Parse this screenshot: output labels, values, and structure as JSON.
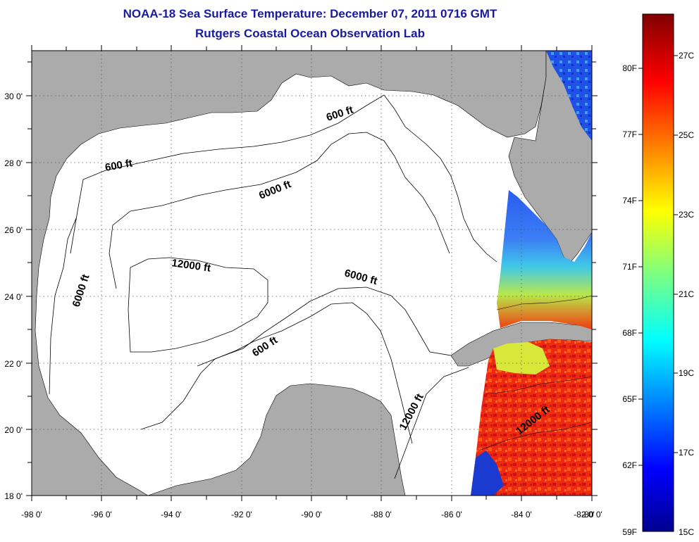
{
  "title": "NOAA-18 Sea Surface Temperature:  December 07, 2011 0716 GMT",
  "subtitle": "Rutgers Coastal Ocean Observation Lab",
  "lon_ticks": [
    "-98 0'",
    "-96 0'",
    "-94 0'",
    "-92 0'",
    "-90 0'",
    "-88 0'",
    "-86 0'",
    "-84 0'",
    "-82 0'",
    "-80 0'"
  ],
  "lat_ticks": [
    "18 0'",
    "20 0'",
    "22 0'",
    "24 0'",
    "26 0'",
    "28 0'",
    "30 0'"
  ],
  "contours": [
    {
      "label": "600 ft"
    },
    {
      "label": "600 ft"
    },
    {
      "label": "6000 ft"
    },
    {
      "label": "12000 ft"
    },
    {
      "label": "6000 ft"
    },
    {
      "label": "6000 ft"
    },
    {
      "label": "600 ft"
    },
    {
      "label": "12000 ft"
    },
    {
      "label": "12000 ft"
    }
  ],
  "colorbar": {
    "fahrenheit": [
      "80F",
      "77F",
      "74F",
      "71F",
      "68F",
      "65F",
      "62F",
      "59F"
    ],
    "celsius": [
      "27C",
      "25C",
      "23C",
      "21C",
      "19C",
      "17C",
      "15C"
    ]
  },
  "colors": {
    "land": "#ababab",
    "water": "#ffffff",
    "title": "#1a1aa0"
  }
}
